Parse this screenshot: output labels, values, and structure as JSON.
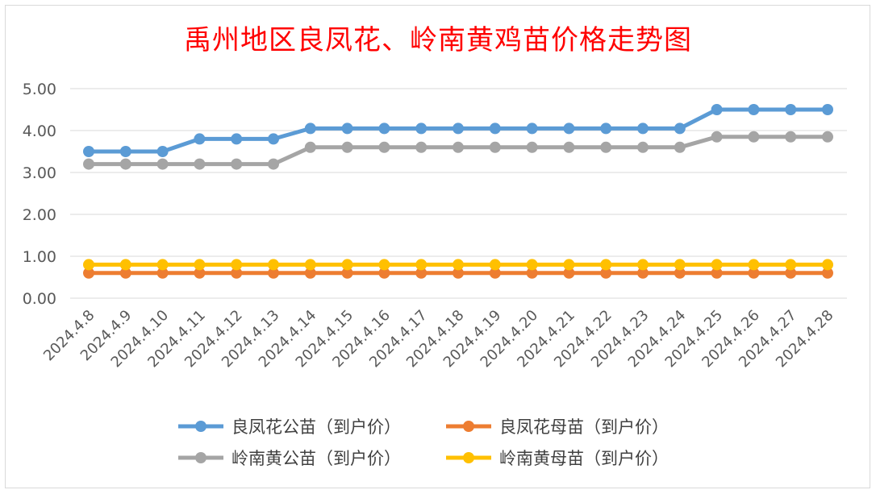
{
  "chart_data": {
    "type": "line",
    "title": "禹州地区良凤花、岭南黄鸡苗价格走势图",
    "xlabel": "",
    "ylabel": "",
    "ylim": [
      0,
      5
    ],
    "yticks": [
      "0.00",
      "1.00",
      "2.00",
      "3.00",
      "4.00",
      "5.00"
    ],
    "grid": true,
    "legend_position": "bottom",
    "categories": [
      "2024.4.8",
      "2024.4.9",
      "2024.4.10",
      "2024.4.11",
      "2024.4.12",
      "2024.4.13",
      "2024.4.14",
      "2024.4.15",
      "2024.4.16",
      "2024.4.17",
      "2024.4.18",
      "2024.4.19",
      "2024.4.20",
      "2024.4.21",
      "2024.4.22",
      "2024.4.23",
      "2024.4.24",
      "2024.4.25",
      "2024.4.26",
      "2024.4.27",
      "2024.4.28"
    ],
    "series": [
      {
        "name": "良凤花公苗（到户价）",
        "color": "#5b9bd5",
        "values": [
          3.5,
          3.5,
          3.5,
          3.8,
          3.8,
          3.8,
          4.05,
          4.05,
          4.05,
          4.05,
          4.05,
          4.05,
          4.05,
          4.05,
          4.05,
          4.05,
          4.05,
          4.5,
          4.5,
          4.5,
          4.5
        ]
      },
      {
        "name": "良凤花母苗（到户价）",
        "color": "#ed7d31",
        "values": [
          0.6,
          0.6,
          0.6,
          0.6,
          0.6,
          0.6,
          0.6,
          0.6,
          0.6,
          0.6,
          0.6,
          0.6,
          0.6,
          0.6,
          0.6,
          0.6,
          0.6,
          0.6,
          0.6,
          0.6,
          0.6
        ]
      },
      {
        "name": "岭南黄公苗（到户价）",
        "color": "#a5a5a5",
        "values": [
          3.2,
          3.2,
          3.2,
          3.2,
          3.2,
          3.2,
          3.6,
          3.6,
          3.6,
          3.6,
          3.6,
          3.6,
          3.6,
          3.6,
          3.6,
          3.6,
          3.6,
          3.85,
          3.85,
          3.85,
          3.85
        ]
      },
      {
        "name": "岭南黄母苗（到户价）",
        "color": "#ffc000",
        "values": [
          0.8,
          0.8,
          0.8,
          0.8,
          0.8,
          0.8,
          0.8,
          0.8,
          0.8,
          0.8,
          0.8,
          0.8,
          0.8,
          0.8,
          0.8,
          0.8,
          0.8,
          0.8,
          0.8,
          0.8,
          0.8
        ]
      }
    ]
  }
}
